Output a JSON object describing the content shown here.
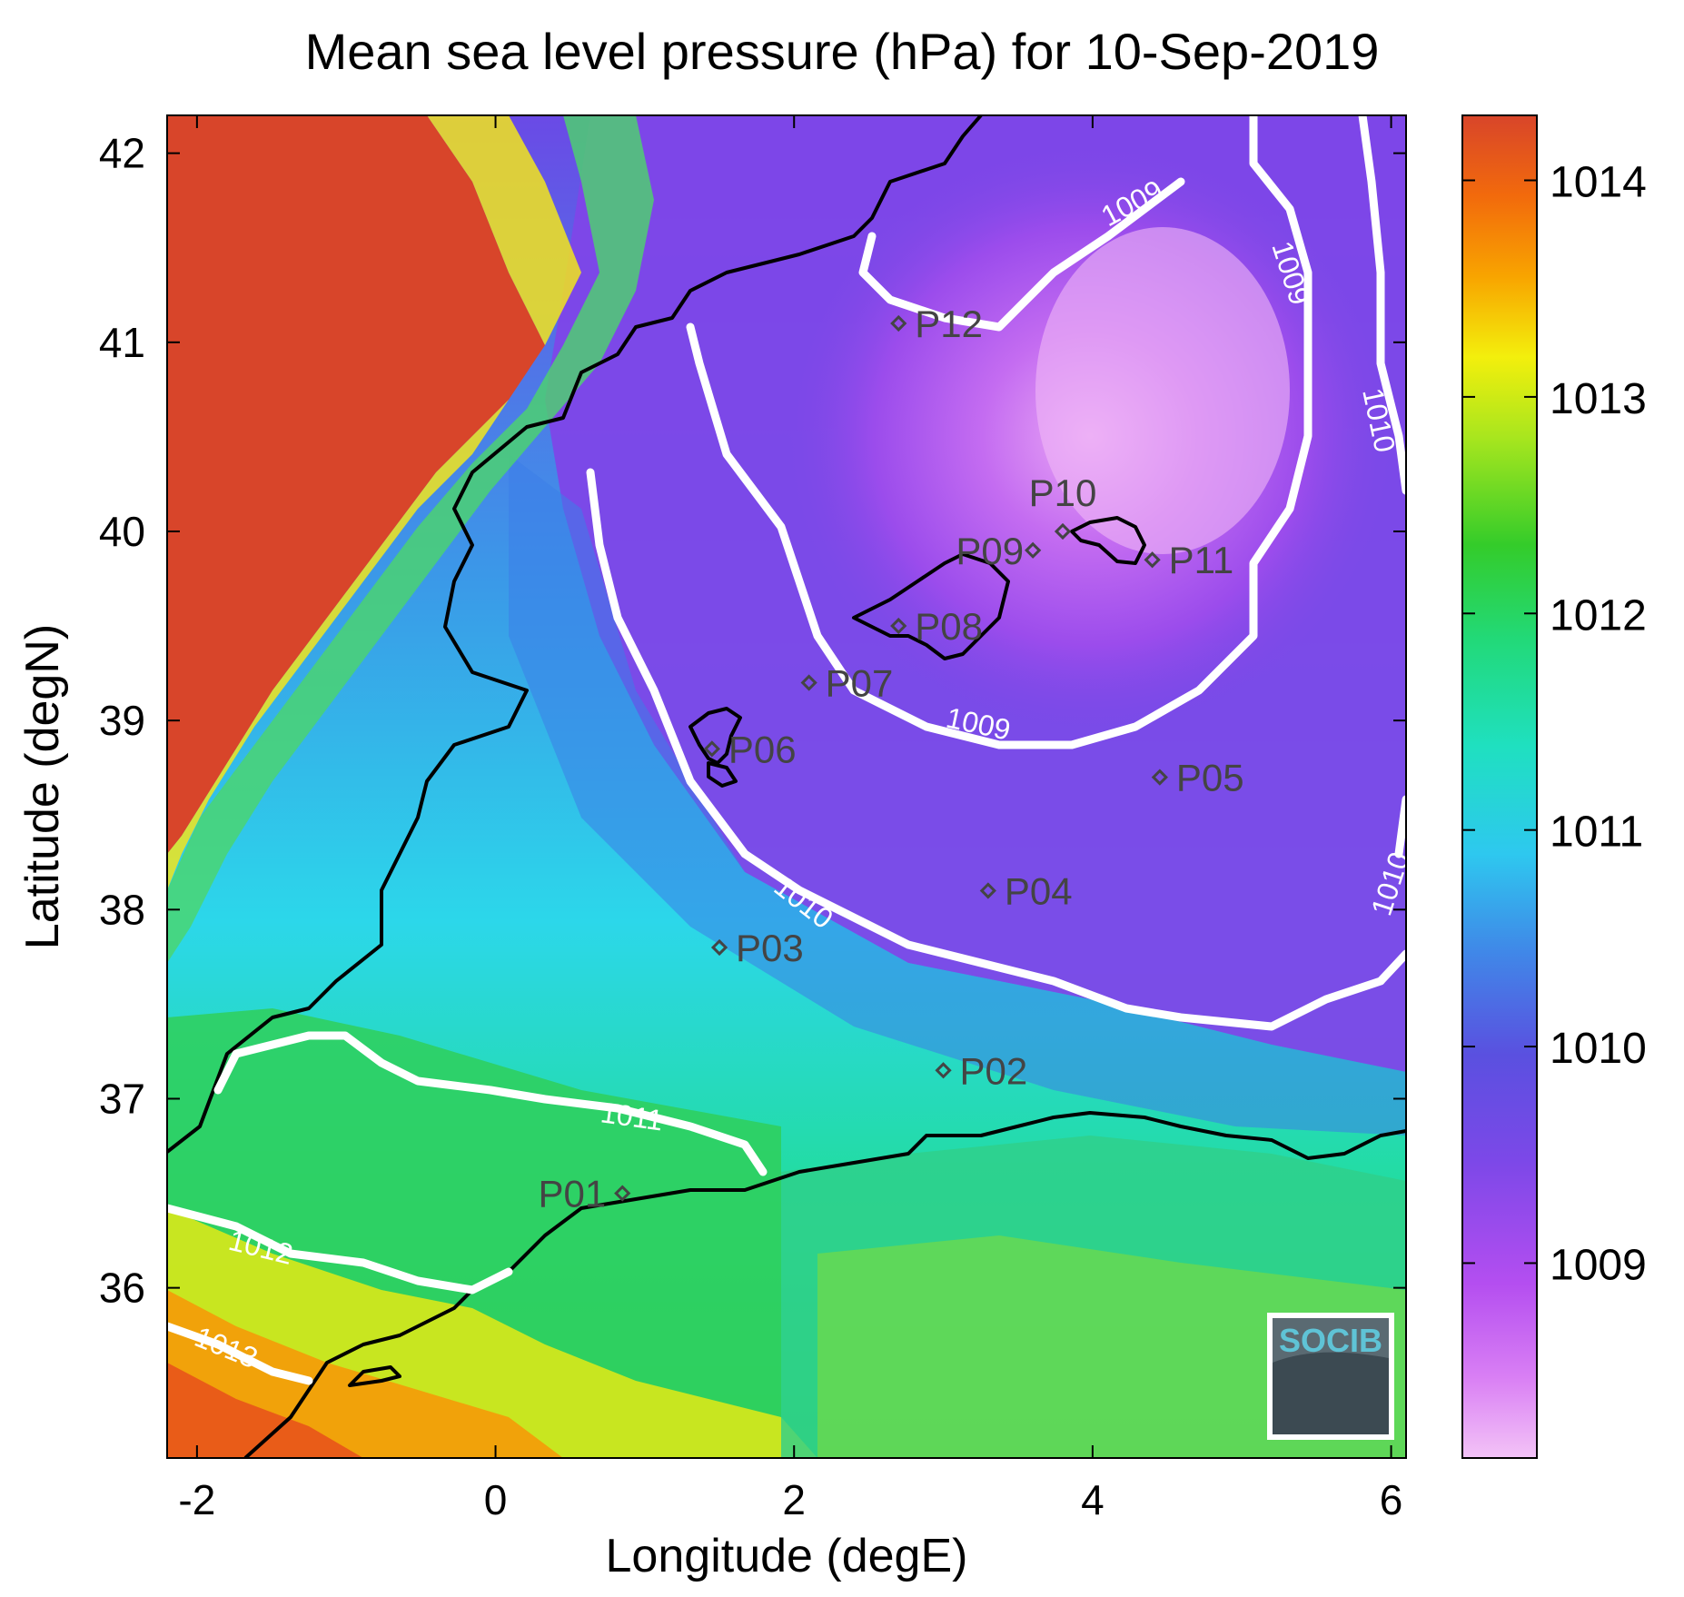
{
  "title": "Mean sea level pressure (hPa) for 10-Sep-2019",
  "chart_data": {
    "type": "heatmap",
    "title": "Mean sea level pressure (hPa) for 10-Sep-2019",
    "xlabel": "Longitude (degE)",
    "ylabel": "Latitude (degN)",
    "xlim": [
      -2.2,
      6.1
    ],
    "ylim": [
      35.1,
      42.2
    ],
    "x_ticks": [
      {
        "v": -2,
        "label": "-2"
      },
      {
        "v": 0,
        "label": "0"
      },
      {
        "v": 2,
        "label": "2"
      },
      {
        "v": 4,
        "label": "4"
      },
      {
        "v": 6,
        "label": "6"
      }
    ],
    "y_ticks": [
      {
        "v": 36,
        "label": "36"
      },
      {
        "v": 37,
        "label": "37"
      },
      {
        "v": 38,
        "label": "38"
      },
      {
        "v": 39,
        "label": "39"
      },
      {
        "v": 40,
        "label": "40"
      },
      {
        "v": 41,
        "label": "41"
      },
      {
        "v": 42,
        "label": "42"
      }
    ],
    "colorbar": {
      "range": [
        1008.1,
        1014.3
      ],
      "ticks": [
        {
          "v": 1009,
          "label": "1009"
        },
        {
          "v": 1010,
          "label": "1010"
        },
        {
          "v": 1011,
          "label": "1011"
        },
        {
          "v": 1012,
          "label": "1012"
        },
        {
          "v": 1013,
          "label": "1013"
        },
        {
          "v": 1014,
          "label": "1014"
        }
      ]
    },
    "contour_labels": [
      "1009",
      "1009",
      "1009",
      "1010",
      "1010",
      "1010",
      "1011",
      "1012",
      "1013"
    ],
    "stations": [
      {
        "label": "P01",
        "lon": 0.85,
        "lat": 36.5
      },
      {
        "label": "P02",
        "lon": 3.0,
        "lat": 37.15
      },
      {
        "label": "P03",
        "lon": 1.5,
        "lat": 37.8
      },
      {
        "label": "P04",
        "lon": 3.3,
        "lat": 38.1
      },
      {
        "label": "P05",
        "lon": 4.45,
        "lat": 38.7
      },
      {
        "label": "P06",
        "lon": 1.45,
        "lat": 38.85
      },
      {
        "label": "P07",
        "lon": 2.1,
        "lat": 39.2
      },
      {
        "label": "P08",
        "lon": 2.7,
        "lat": 39.5
      },
      {
        "label": "P09",
        "lon": 3.6,
        "lat": 39.9
      },
      {
        "label": "P10",
        "lon": 3.8,
        "lat": 40.0
      },
      {
        "label": "P11",
        "lon": 4.4,
        "lat": 39.85
      },
      {
        "label": "P12",
        "lon": 2.7,
        "lat": 41.1
      }
    ]
  },
  "logo": {
    "text": "SOCIB"
  }
}
